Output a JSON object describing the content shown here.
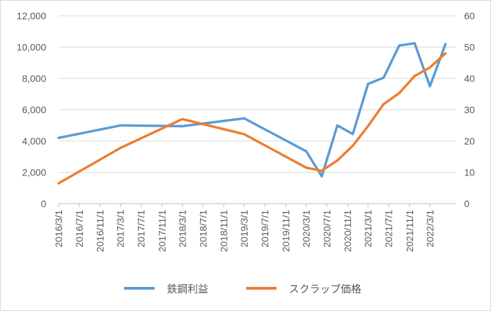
{
  "chart_data": {
    "type": "line",
    "title": "",
    "categories": [
      "2016/3/1",
      "2016/7/1",
      "2016/11/1",
      "2017/3/1",
      "2017/7/1",
      "2017/11/1",
      "2018/3/1",
      "2018/7/1",
      "2018/11/1",
      "2019/3/1",
      "2019/7/1",
      "2019/11/1",
      "2020/3/1",
      "2020/7/1",
      "2020/11/1",
      "2021/3/1",
      "2021/7/1",
      "2021/11/1",
      "2022/3/1"
    ],
    "y_left": {
      "range": [
        0,
        12000
      ],
      "ticks": [
        "0",
        "2,000",
        "4,000",
        "6,000",
        "8,000",
        "10,000",
        "12,000"
      ]
    },
    "y_right": {
      "range": [
        0,
        60
      ],
      "ticks": [
        "0",
        "10",
        "20",
        "30",
        "40",
        "50",
        "60"
      ]
    },
    "series": [
      {
        "name": "鉄鋼利益",
        "axis": "left",
        "color": "#5B9BD5",
        "points": [
          {
            "x": "2016/3/1",
            "y": 4200
          },
          {
            "x": "2017/3/1",
            "y": 5000
          },
          {
            "x": "2018/3/1",
            "y": 4950
          },
          {
            "x": "2019/3/1",
            "y": 5450
          },
          {
            "x": "2020/3/1",
            "y": 3350
          },
          {
            "x": "2020/6/1",
            "y": 1750
          },
          {
            "x": "2020/9/1",
            "y": 5000
          },
          {
            "x": "2020/12/1",
            "y": 4450
          },
          {
            "x": "2021/3/1",
            "y": 7650
          },
          {
            "x": "2021/6/1",
            "y": 8050
          },
          {
            "x": "2021/9/1",
            "y": 10100
          },
          {
            "x": "2021/12/1",
            "y": 10250
          },
          {
            "x": "2022/3/1",
            "y": 7500
          },
          {
            "x": "2022/6/1",
            "y": 10200
          }
        ]
      },
      {
        "name": "スクラップ価格",
        "axis": "right",
        "color": "#ED7D31",
        "points": [
          {
            "x": "2016/3/1",
            "y": 6.5
          },
          {
            "x": "2017/3/1",
            "y": 17.8
          },
          {
            "x": "2018/3/1",
            "y": 27.0
          },
          {
            "x": "2019/3/1",
            "y": 22.2
          },
          {
            "x": "2020/3/1",
            "y": 11.5
          },
          {
            "x": "2020/6/1",
            "y": 10.5
          },
          {
            "x": "2020/9/1",
            "y": 13.8
          },
          {
            "x": "2020/12/1",
            "y": 18.5
          },
          {
            "x": "2021/3/1",
            "y": 24.8
          },
          {
            "x": "2021/6/1",
            "y": 31.8
          },
          {
            "x": "2021/9/1",
            "y": 35.3
          },
          {
            "x": "2021/12/1",
            "y": 40.8
          },
          {
            "x": "2022/3/1",
            "y": 43.5
          },
          {
            "x": "2022/6/1",
            "y": 48.0
          }
        ]
      }
    ],
    "grid": true,
    "legend_position": "bottom"
  }
}
